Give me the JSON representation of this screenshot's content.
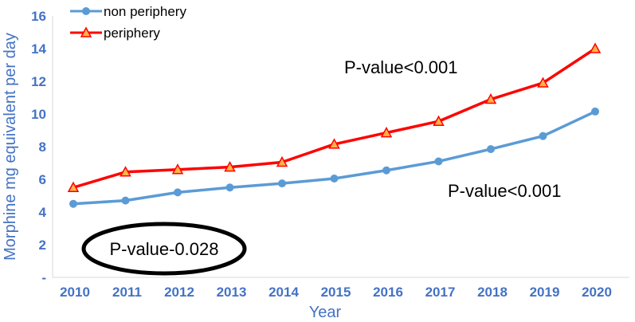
{
  "chart_data": {
    "type": "line",
    "xlabel": "Year",
    "ylabel": "Morphine mg equivalent per day",
    "x": [
      "2010",
      "2011",
      "2012",
      "2013",
      "2014",
      "2015",
      "2016",
      "2017",
      "2018",
      "2019",
      "2020"
    ],
    "ylim": [
      0,
      16
    ],
    "y_ticks": [
      "-",
      "2",
      "4",
      "6",
      "8",
      "10",
      "12",
      "14",
      "16"
    ],
    "grid": false,
    "legend_position": "top-left",
    "series": [
      {
        "name": "non periphery",
        "color": "#5b9bd5",
        "marker": "circle",
        "values": [
          4.5,
          4.7,
          5.2,
          5.5,
          5.75,
          6.05,
          6.55,
          7.1,
          7.85,
          8.65,
          10.15
        ]
      },
      {
        "name": "periphery",
        "color": "#ff0000",
        "marker": "triangle",
        "values": [
          5.5,
          6.45,
          6.6,
          6.75,
          7.05,
          8.15,
          8.85,
          9.55,
          10.9,
          11.9,
          14.0
        ]
      }
    ],
    "annotations": [
      {
        "text": "P-value<0.001",
        "near_series": "periphery"
      },
      {
        "text": "P-value<0.001",
        "near_series": "non periphery"
      },
      {
        "text": "P-value-0.028",
        "circled": true
      }
    ]
  }
}
